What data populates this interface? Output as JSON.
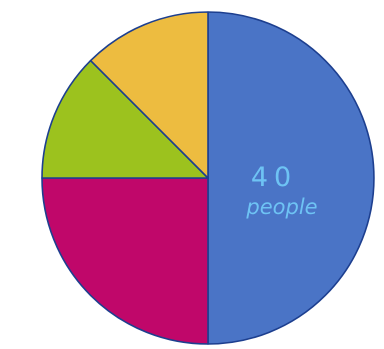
{
  "chart_data": {
    "type": "pie",
    "start_angle_deg": 0,
    "direction": "clockwise",
    "slices": [
      {
        "value": 40,
        "color": "#4a74c6"
      },
      {
        "value": 20,
        "color": "#c0076a"
      },
      {
        "value": 10,
        "color": "#9cc21e"
      },
      {
        "value": 10,
        "color": "#edbc40"
      }
    ],
    "annotation": {
      "slice_index": 0,
      "value": "40",
      "unit": "people"
    }
  }
}
